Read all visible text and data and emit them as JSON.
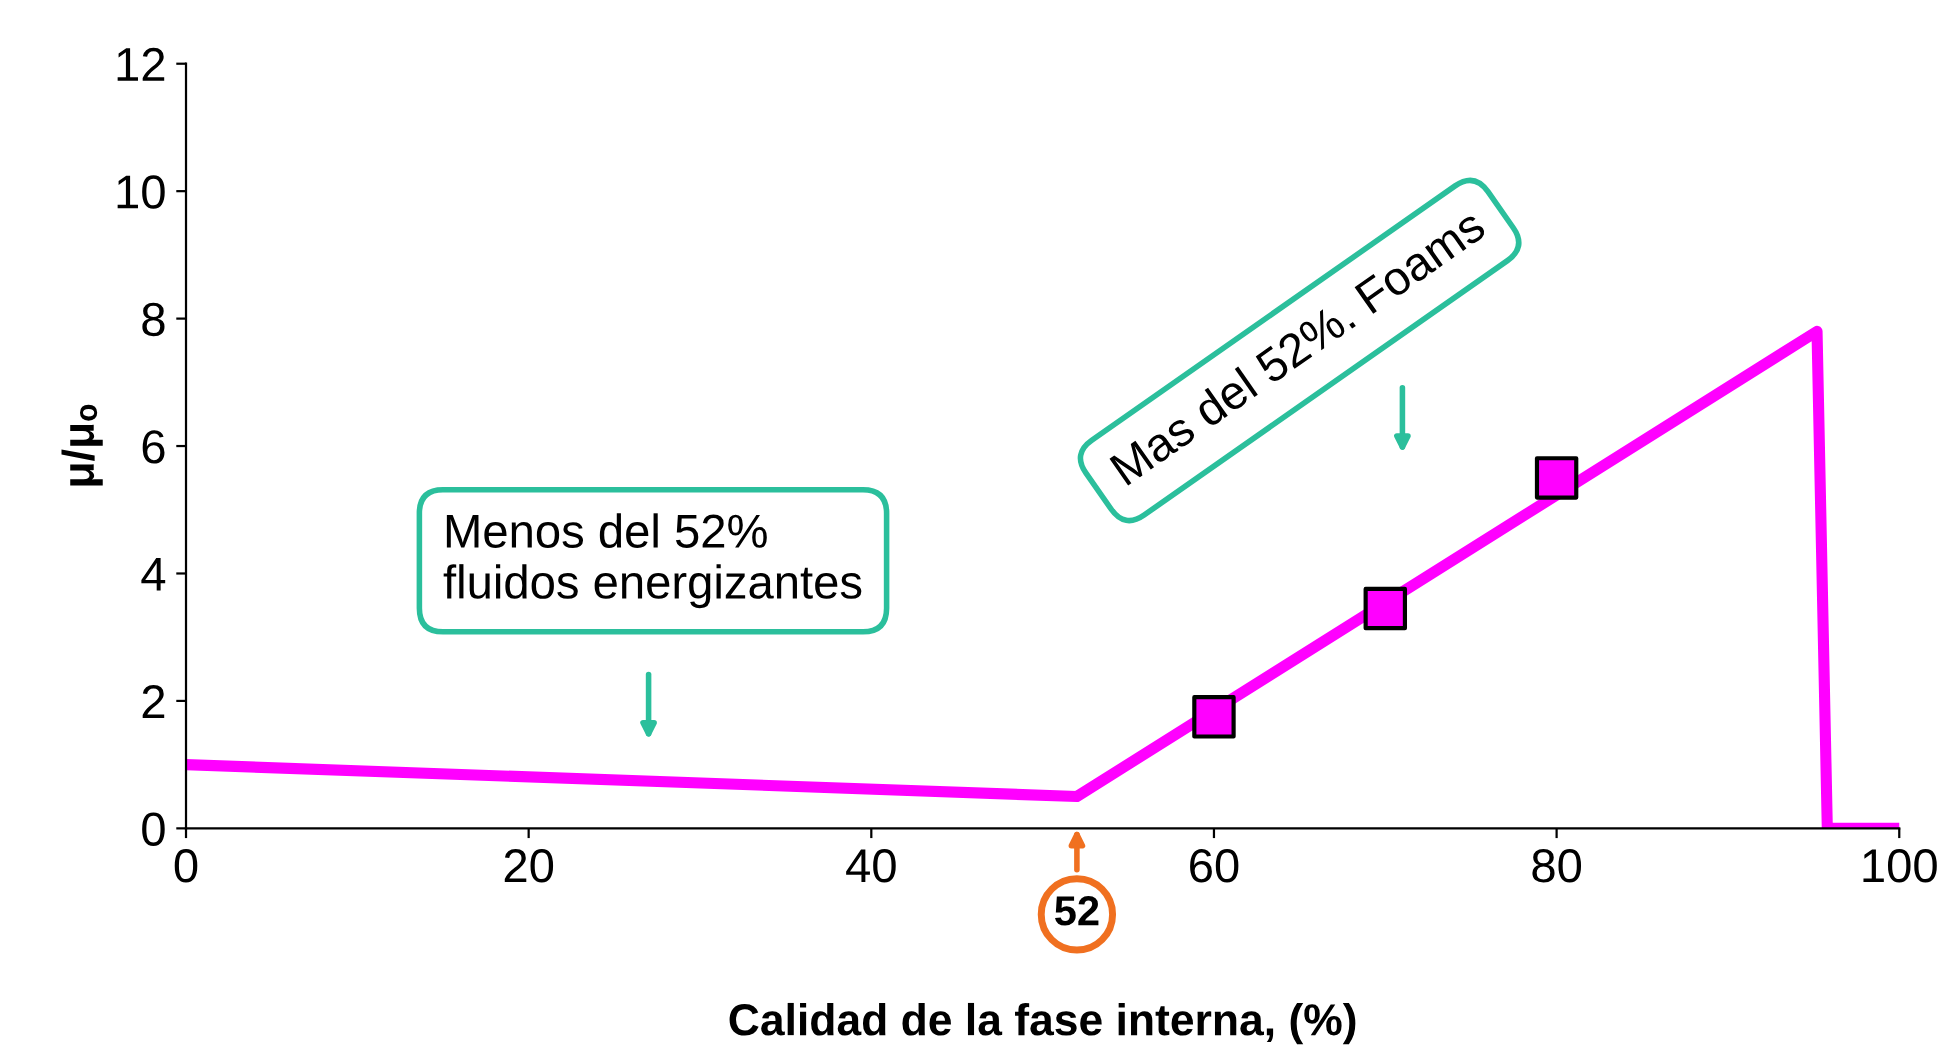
{
  "chart_data": {
    "type": "line",
    "xlabel": "Calidad de la fase interna, (%)",
    "ylabel": "μ/μₒ",
    "xlim": [
      0,
      100
    ],
    "ylim": [
      0,
      12
    ],
    "xticks": [
      0,
      20,
      40,
      60,
      80,
      100
    ],
    "yticks": [
      0,
      2,
      4,
      6,
      8,
      10,
      12
    ],
    "grid": false,
    "legend": false,
    "series": [
      {
        "color": "#ff00ff",
        "marker": "none",
        "x": [
          0,
          52,
          95.2,
          95.8,
          100
        ],
        "values": [
          1,
          0.5,
          7.8,
          0,
          0
        ]
      },
      {
        "type": "scatter",
        "color": "#ff00ff",
        "marker": "square",
        "x": [
          60,
          70,
          80
        ],
        "values": [
          1.75,
          3.45,
          5.5
        ]
      }
    ],
    "annotations": [
      "Menos del 52%\nfluidos energizantes",
      "Mas del 52%. Foams",
      "52"
    ]
  }
}
